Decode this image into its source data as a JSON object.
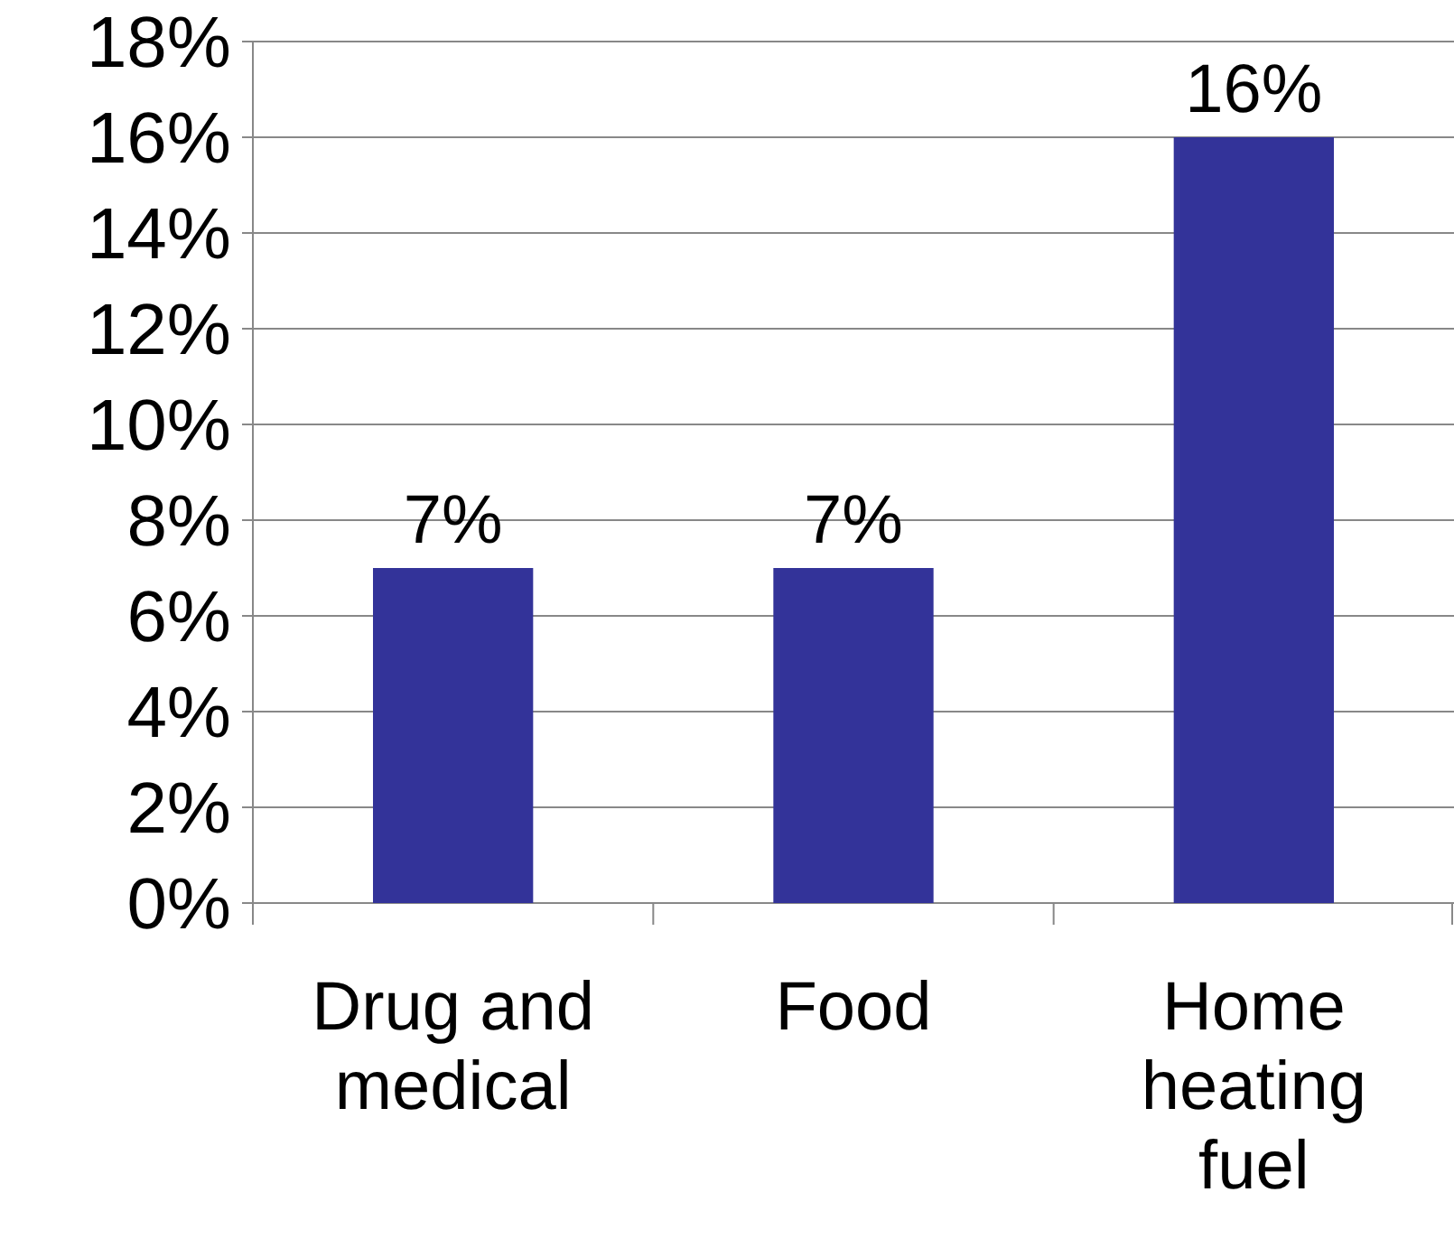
{
  "chart_data": {
    "type": "bar",
    "categories": [
      "Drug and medical",
      "Food",
      "Home heating fuel"
    ],
    "values": [
      7,
      7,
      16
    ],
    "color": "#333399",
    "value_labels": [
      "7%",
      "7%",
      "16%"
    ],
    "ylim": [
      0,
      18
    ],
    "yticks": [
      {
        "value": 0,
        "label": "0%"
      },
      {
        "value": 2,
        "label": "2%"
      },
      {
        "value": 4,
        "label": "4%"
      },
      {
        "value": 6,
        "label": "6%"
      },
      {
        "value": 8,
        "label": "8%"
      },
      {
        "value": 10,
        "label": "10%"
      },
      {
        "value": 12,
        "label": "12%"
      },
      {
        "value": 14,
        "label": "14%"
      },
      {
        "value": 16,
        "label": "16%"
      },
      {
        "value": 18,
        "label": "18%"
      }
    ],
    "grid": "y"
  }
}
